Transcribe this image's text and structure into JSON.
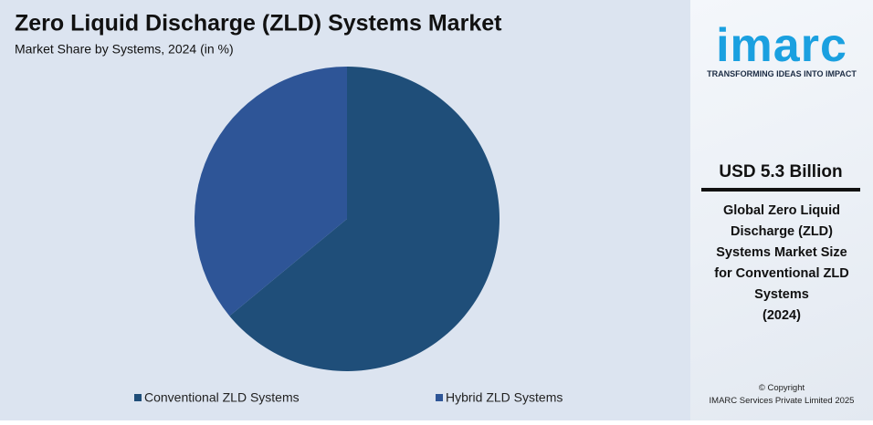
{
  "chart_data": {
    "type": "pie",
    "title": "Zero Liquid Discharge (ZLD) Systems Market",
    "subtitle": "Market Share by Systems, 2024 (in %)",
    "categories": [
      "Conventional ZLD Systems",
      "Hybrid ZLD Systems"
    ],
    "values": [
      64,
      36
    ],
    "colors": [
      "#1f4e79",
      "#2e5597"
    ]
  },
  "sidebar": {
    "logo": "imarc",
    "tagline": "TRANSFORMING IDEAS INTO IMPACT",
    "headline": "USD 5.3 Billion",
    "description": [
      "Global Zero Liquid",
      "Discharge (ZLD)",
      "Systems Market Size",
      "for Conventional ZLD",
      "Systems",
      "(2024)"
    ],
    "copyright": [
      "© Copyright",
      "IMARC Services Private Limited 2025"
    ]
  }
}
